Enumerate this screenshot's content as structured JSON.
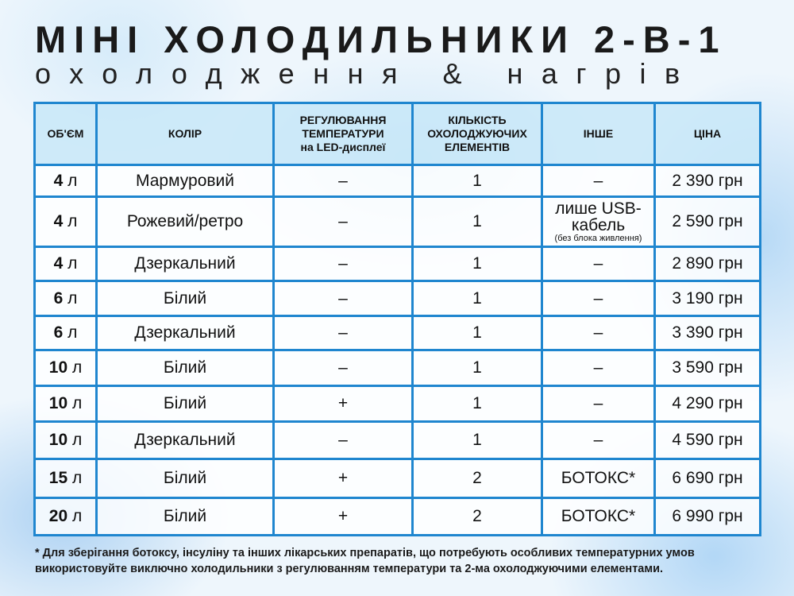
{
  "title": "МІНІ ХОЛОДИЛЬНИКИ 2-В-1",
  "subtitle": "охолодження & нагрів",
  "headers": [
    "ОБ'ЄМ",
    "КОЛІР",
    "РЕГУЛЮВАННЯ ТЕМПЕРАТУРИ на LED-дисплеї",
    "КІЛЬКІСТЬ ОХОЛОДЖУЮЧИХ ЕЛЕМЕНТІВ",
    "ІНШЕ",
    "ЦІНА"
  ],
  "header_lines": {
    "temp": [
      "РЕГУЛЮВАННЯ",
      "ТЕМПЕРАТУРИ",
      "на LED-дисплеї"
    ],
    "count": [
      "КІЛЬКІСТЬ",
      "ОХОЛОДЖУЮЧИХ",
      "ЕЛЕМЕНТІВ"
    ]
  },
  "unit": "л",
  "rows": [
    {
      "volume": "4",
      "color": "Мармуровий",
      "temp": "–",
      "elements": "1",
      "other": "–",
      "price": "2 390 грн"
    },
    {
      "volume": "4",
      "color": "Рожевий/ретро",
      "temp": "–",
      "elements": "1",
      "other": "лише USB-кабель",
      "other_note": "(без блока живлення)",
      "price": "2 590 грн"
    },
    {
      "volume": "4",
      "color": "Дзеркальний",
      "temp": "–",
      "elements": "1",
      "other": "–",
      "price": "2 890 грн"
    },
    {
      "volume": "6",
      "color": "Білий",
      "temp": "–",
      "elements": "1",
      "other": "–",
      "price": "3 190 грн"
    },
    {
      "volume": "6",
      "color": "Дзеркальний",
      "temp": "–",
      "elements": "1",
      "other": "–",
      "price": "3 390 грн"
    },
    {
      "volume": "10",
      "color": "Білий",
      "temp": "–",
      "elements": "1",
      "other": "–",
      "price": "3 590 грн"
    },
    {
      "volume": "10",
      "color": "Білий",
      "temp": "+",
      "elements": "1",
      "other": "–",
      "price": "4 290 грн"
    },
    {
      "volume": "10",
      "color": "Дзеркальний",
      "temp": "–",
      "elements": "1",
      "other": "–",
      "price": "4 590 грн"
    },
    {
      "volume": "15",
      "color": "Білий",
      "temp": "+",
      "elements": "2",
      "other": "БОТОКС*",
      "price": "6 690 грн"
    },
    {
      "volume": "20",
      "color": "Білий",
      "temp": "+",
      "elements": "2",
      "other": "БОТОКС*",
      "price": "6 990 грн"
    }
  ],
  "footnote": [
    "* Для зберігання ботоксу, інсуліну та інших лікарських препаратів, що потребують особливих температурних умов",
    "використовуйте виключно холодильники з регулюванням температури та 2-ма охолоджуючими елементами."
  ],
  "colors": {
    "border": "#1f86cf",
    "header_bg": "#c8e8f8"
  }
}
